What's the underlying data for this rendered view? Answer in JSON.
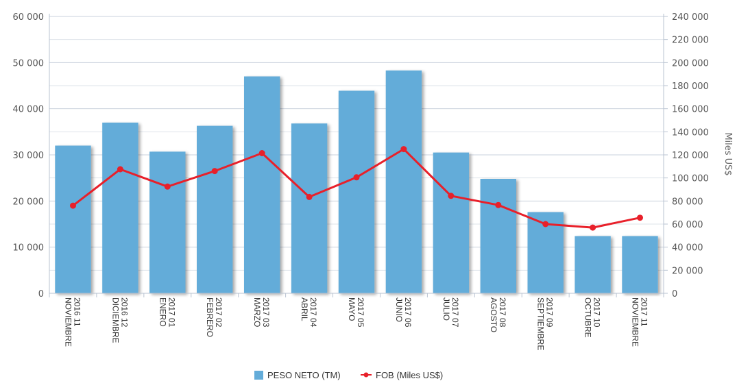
{
  "chart_data": {
    "type": "bar",
    "categories": [
      [
        "2016 11",
        "NOVIEMBRE"
      ],
      [
        "2016 12",
        "DICIEMBRE"
      ],
      [
        "2017 01",
        "ENERO"
      ],
      [
        "2017 02",
        "FEBRERO"
      ],
      [
        "2017 03",
        "MARZO"
      ],
      [
        "2017 04",
        "ABRIL"
      ],
      [
        "2017 05",
        "MAYO"
      ],
      [
        "2017 06",
        "JUNIO"
      ],
      [
        "2017 07",
        "JULIO"
      ],
      [
        "2017 08",
        "AGOSTO"
      ],
      [
        "2017 09",
        "SEPTIEMBRE"
      ],
      [
        "2017 10",
        "OCTUBRE"
      ],
      [
        "2017 11",
        "NOVIEMBRE"
      ]
    ],
    "series": [
      {
        "name": "PESO NETO (TM)",
        "type": "bar",
        "axis": "left",
        "color": "#63acd9",
        "values": [
          32000,
          37000,
          30700,
          36300,
          47000,
          36800,
          43900,
          48300,
          30500,
          24800,
          17600,
          12400,
          12400
        ]
      },
      {
        "name": "FOB (Miles US$)",
        "type": "line",
        "axis": "right",
        "color": "#e8202a",
        "values": [
          76000,
          107500,
          92500,
          106000,
          121500,
          83500,
          100500,
          125000,
          84500,
          76500,
          60000,
          57000,
          65500
        ]
      }
    ],
    "y_left": {
      "label": "",
      "min": 0,
      "max": 60000,
      "ticks": [
        0,
        10000,
        20000,
        30000,
        40000,
        50000,
        60000
      ],
      "tick_labels": [
        "0",
        "10 000",
        "20 000",
        "30 000",
        "40 000",
        "50 000",
        "60 000"
      ]
    },
    "y_right": {
      "label": "Miles US$",
      "min": 0,
      "max": 240000,
      "ticks": [
        0,
        20000,
        40000,
        60000,
        80000,
        100000,
        120000,
        140000,
        160000,
        180000,
        200000,
        220000,
        240000
      ],
      "tick_labels": [
        "0",
        "20 000",
        "40 000",
        "60 000",
        "80 000",
        "100 000",
        "120 000",
        "140 000",
        "160 000",
        "180 000",
        "200 000",
        "220 000",
        "240 000"
      ]
    },
    "grid": true,
    "legend_position": "bottom-center"
  }
}
